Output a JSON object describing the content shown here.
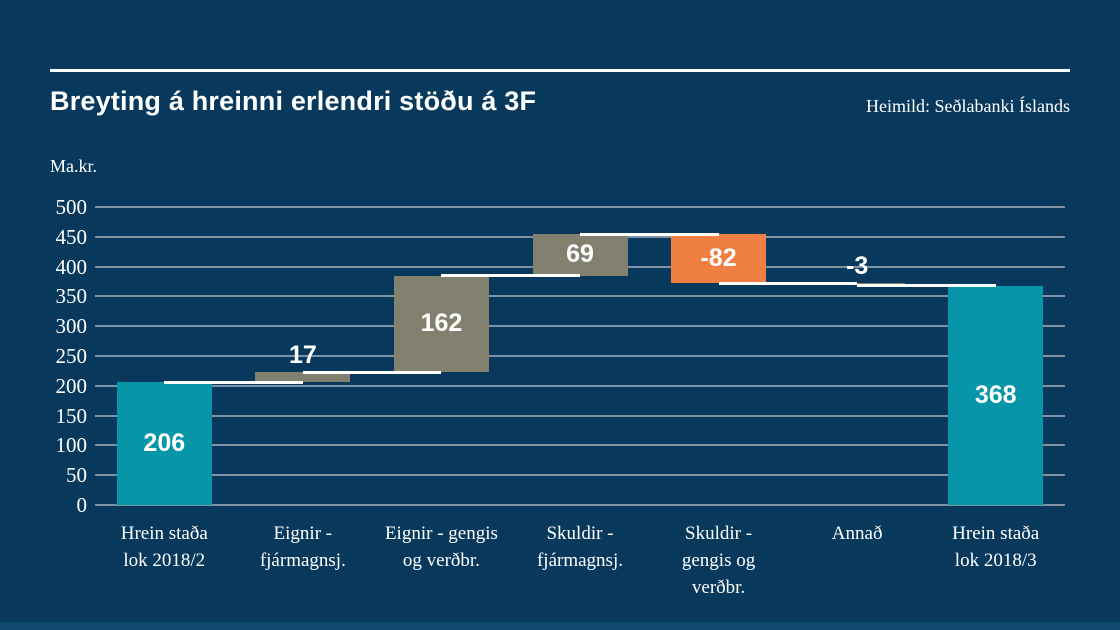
{
  "page": {
    "background_color": "#08395C",
    "footer_strip_color": "#0F4870"
  },
  "header": {
    "title": "Breyting á hreinni erlendri stöðu á 3F",
    "source": "Heimild: Seðlabanki Íslands"
  },
  "chart_data": {
    "type": "bar",
    "subtype": "waterfall",
    "title": "Breyting á hreinni erlendri stöðu á 3F",
    "unit_label": "Ma.kr.",
    "ylim": [
      0,
      500
    ],
    "ytick_step": 50,
    "grid": true,
    "legend": "none",
    "colors": {
      "total_bar": "#0795A8",
      "delta_bar": "#82816F",
      "negative_highlight_bar": "#F07E41",
      "gridline": "#7E93A4",
      "connector": "#FFFFFF",
      "text": "#FFFFFF"
    },
    "bars": [
      {
        "category_lines": [
          "Hrein staða",
          "lok 2018/2"
        ],
        "value": 206,
        "display": "206",
        "kind": "total",
        "color": "#0795A8"
      },
      {
        "category_lines": [
          "Eignir -",
          "fjármagnsj."
        ],
        "value": 17,
        "display": "17",
        "kind": "delta",
        "color": "#82816F"
      },
      {
        "category_lines": [
          "Eignir - gengis",
          "og verðbr."
        ],
        "value": 162,
        "display": "162",
        "kind": "delta",
        "color": "#82816F"
      },
      {
        "category_lines": [
          "Skuldir -",
          "fjármagnsj."
        ],
        "value": 69,
        "display": "69",
        "kind": "delta",
        "color": "#82816F"
      },
      {
        "category_lines": [
          "Skuldir -",
          "gengis og",
          "verðbr."
        ],
        "value": -82,
        "display": "-82",
        "kind": "delta",
        "color": "#F08041"
      },
      {
        "category_lines": [
          "Annað"
        ],
        "value": -3,
        "display": "-3",
        "kind": "delta",
        "color": "#82816F"
      },
      {
        "category_lines": [
          "Hrein staða",
          "lok 2018/3"
        ],
        "value": 368,
        "display": "368",
        "kind": "total",
        "color": "#0795A8"
      }
    ],
    "running_totals": [
      206,
      223,
      385,
      454,
      372,
      369,
      368
    ]
  }
}
